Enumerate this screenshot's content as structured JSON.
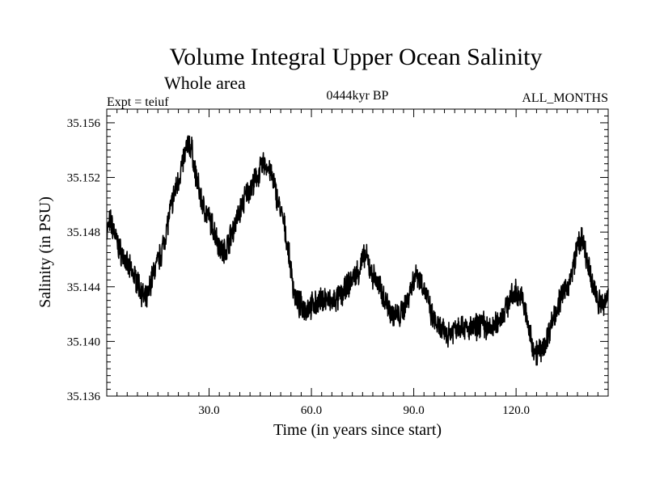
{
  "chart_data": {
    "type": "line",
    "title": "Volume Integral Upper Ocean Salinity",
    "subtitle": "Whole area",
    "experiment": "Expt = teiuf",
    "period": "0444kyr BP",
    "months": "ALL_MONTHS",
    "xlabel": "Time (in years since start)",
    "ylabel": "Salinity (in PSU)",
    "xlim": [
      0,
      147
    ],
    "ylim": [
      35.136,
      35.157
    ],
    "xticks": [
      30,
      60,
      90,
      120
    ],
    "xtick_labels": [
      "30.0",
      "60.0",
      "90.0",
      "120.0"
    ],
    "yticks": [
      35.136,
      35.14,
      35.144,
      35.148,
      35.152,
      35.156
    ],
    "ytick_labels": [
      "35.136",
      "35.140",
      "35.144",
      "35.148",
      "35.152",
      "35.156"
    ],
    "grid": false,
    "series": [
      {
        "name": "Salinity",
        "color": "#000000",
        "x": [
          0,
          1,
          2,
          3,
          4,
          5,
          6,
          7,
          8,
          9,
          10,
          11,
          12,
          13,
          14,
          15,
          16,
          17,
          18,
          19,
          20,
          21,
          22,
          23,
          24,
          25,
          26,
          27,
          28,
          29,
          30,
          31,
          32,
          33,
          34,
          35,
          36,
          37,
          38,
          39,
          40,
          41,
          42,
          43,
          44,
          45,
          46,
          47,
          48,
          49,
          50,
          51,
          52,
          53,
          54,
          55,
          56,
          57,
          58,
          59,
          60,
          62,
          64,
          66,
          68,
          70,
          72,
          74,
          75,
          76,
          77,
          78,
          80,
          82,
          84,
          86,
          88,
          90,
          91,
          92,
          94,
          95,
          96,
          98,
          100,
          102,
          104,
          106,
          108,
          110,
          112,
          114,
          116,
          118,
          120,
          122,
          123,
          124,
          125,
          126,
          128,
          130,
          132,
          134,
          136,
          137,
          138,
          139,
          140,
          142,
          144,
          146,
          147
        ],
        "values": [
          35.148,
          35.1488,
          35.1482,
          35.1472,
          35.1466,
          35.1462,
          35.1455,
          35.1452,
          35.1448,
          35.1444,
          35.1438,
          35.143,
          35.1432,
          35.1445,
          35.1452,
          35.1458,
          35.1465,
          35.1476,
          35.1488,
          35.15,
          35.151,
          35.1518,
          35.1528,
          35.1538,
          35.1545,
          35.154,
          35.1522,
          35.1512,
          35.15,
          35.1495,
          35.149,
          35.1484,
          35.1478,
          35.147,
          35.1465,
          35.1468,
          35.1475,
          35.1482,
          35.1488,
          35.1495,
          35.1502,
          35.1508,
          35.1512,
          35.1515,
          35.152,
          35.1525,
          35.153,
          35.1528,
          35.1524,
          35.1515,
          35.1505,
          35.1495,
          35.1485,
          35.147,
          35.1452,
          35.1435,
          35.1428,
          35.1426,
          35.1424,
          35.1425,
          35.1426,
          35.1428,
          35.1432,
          35.1428,
          35.1432,
          35.1438,
          35.1446,
          35.1452,
          35.146,
          35.1462,
          35.1455,
          35.1448,
          35.144,
          35.1428,
          35.142,
          35.1418,
          35.143,
          35.1446,
          35.145,
          35.1445,
          35.1432,
          35.142,
          35.1415,
          35.1408,
          35.1405,
          35.141,
          35.1412,
          35.1408,
          35.141,
          35.1414,
          35.1408,
          35.1412,
          35.142,
          35.143,
          35.1436,
          35.143,
          35.1418,
          35.1405,
          35.1396,
          35.1392,
          35.1395,
          35.141,
          35.1425,
          35.1436,
          35.1445,
          35.1458,
          35.147,
          35.1475,
          35.1468,
          35.1445,
          35.143,
          35.1426,
          35.1438
        ]
      }
    ]
  }
}
